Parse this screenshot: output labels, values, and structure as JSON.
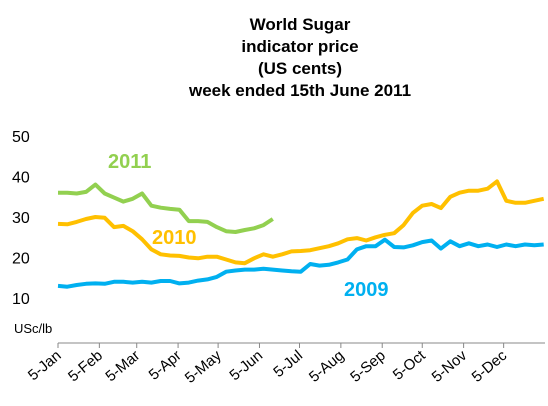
{
  "chart_data": {
    "type": "line",
    "title": [
      "World Sugar",
      "indicator price",
      "(US cents)",
      "week ended 15th June 2011"
    ],
    "y_label": "USc/lb",
    "x": [
      5,
      12,
      19,
      26,
      33,
      40,
      47,
      54,
      61,
      68,
      75,
      82,
      89,
      96,
      103,
      110,
      117,
      124,
      131,
      138,
      145,
      152,
      159,
      166,
      173,
      180,
      187,
      194,
      201,
      208,
      215,
      222,
      229,
      236,
      243,
      250,
      257,
      264,
      271,
      278,
      285,
      292,
      299,
      306,
      313,
      320,
      327,
      334,
      341,
      348,
      355,
      362,
      369
    ],
    "xlim": [
      5,
      370
    ],
    "xticks": [
      {
        "value": 5,
        "label": "5-Jan"
      },
      {
        "value": 36,
        "label": "5-Feb"
      },
      {
        "value": 64,
        "label": "5-Mar"
      },
      {
        "value": 95,
        "label": "5-Apr"
      },
      {
        "value": 125,
        "label": "5-May"
      },
      {
        "value": 156,
        "label": "5-Jun"
      },
      {
        "value": 186,
        "label": "5-Jul"
      },
      {
        "value": 217,
        "label": "5-Aug"
      },
      {
        "value": 248,
        "label": "5-Sep"
      },
      {
        "value": 278,
        "label": "5-Oct"
      },
      {
        "value": 309,
        "label": "5-Nov"
      },
      {
        "value": 339,
        "label": "5-Dec"
      }
    ],
    "ylim": [
      0,
      50
    ],
    "yticks": [
      10,
      20,
      30,
      40,
      50
    ],
    "grid": false,
    "series": [
      {
        "name": "2011",
        "color": "#92d050",
        "values": [
          36,
          36,
          35.8,
          36.2,
          38,
          35.8,
          34.8,
          33.8,
          34.5,
          35.8,
          32.8,
          32.3,
          32,
          31.8,
          29,
          29,
          28.8,
          27.5,
          26.5,
          26.3,
          26.8,
          27.2,
          28,
          29.5,
          null,
          null,
          null,
          null,
          null,
          null,
          null,
          null,
          null,
          null,
          null,
          null,
          null,
          null,
          null,
          null,
          null,
          null,
          null,
          null,
          null,
          null,
          null,
          null,
          null,
          null,
          null,
          null,
          null
        ]
      },
      {
        "name": "2010",
        "color": "#ffc000",
        "values": [
          28.3,
          28.2,
          28.8,
          29.5,
          30,
          29.8,
          27.5,
          27.8,
          26.5,
          24.5,
          22,
          20.8,
          20.5,
          20.4,
          20,
          19.8,
          20.2,
          20.2,
          19.5,
          18.8,
          18.6,
          19.8,
          20.8,
          20.2,
          20.8,
          21.5,
          21.6,
          21.8,
          22.3,
          22.8,
          23.5,
          24.5,
          24.8,
          24.2,
          25,
          25.6,
          26,
          28,
          31,
          32.8,
          33.2,
          32.2,
          35,
          36,
          36.5,
          36.5,
          37,
          38.8,
          34,
          33.5,
          33.5,
          34,
          34.5
        ]
      },
      {
        "name": "2009",
        "color": "#00b0f0",
        "values": [
          13,
          12.8,
          13.2,
          13.5,
          13.6,
          13.5,
          14,
          14,
          13.8,
          14,
          13.8,
          14.2,
          14.2,
          13.6,
          13.8,
          14.3,
          14.6,
          15.2,
          16.5,
          16.8,
          17,
          17,
          17.2,
          17,
          16.8,
          16.6,
          16.5,
          18.4,
          18,
          18.2,
          18.8,
          19.5,
          22,
          22.8,
          22.8,
          24.4,
          22.6,
          22.5,
          23,
          23.8,
          24.2,
          22.2,
          24,
          22.8,
          23.5,
          22.8,
          23.2,
          22.6,
          23.2,
          22.8,
          23.2,
          23,
          23.2
        ]
      }
    ]
  }
}
